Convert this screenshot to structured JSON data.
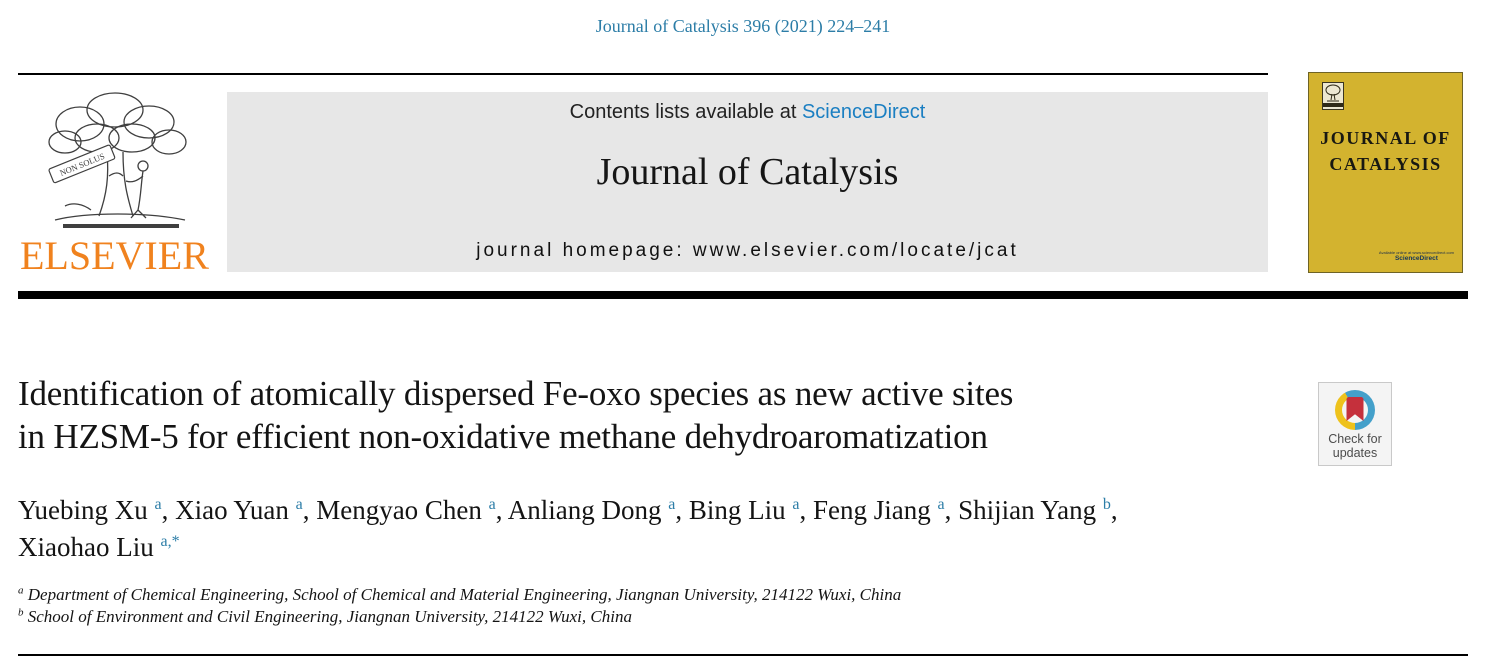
{
  "page": {
    "citation": "Journal of Catalysis 396 (2021) 224–241"
  },
  "header": {
    "contents_prefix": "Contents lists available at ",
    "sciencedirect": "ScienceDirect",
    "journal_title": "Journal of Catalysis",
    "homepage": "journal homepage: www.elsevier.com/locate/jcat"
  },
  "elsevier": {
    "wordmark": "ELSEVIER",
    "ribbon": "NON SOLUS"
  },
  "cover": {
    "title_line1": "JOURNAL OF",
    "title_line2": "CATALYSIS",
    "available_line": "Available online at www.sciencedirect.com",
    "sciencedirect": "ScienceDirect"
  },
  "article": {
    "title_line1": "Identification of atomically dispersed Fe-oxo species as new active sites",
    "title_line2": "in HZSM-5 for efficient non-oxidative methane dehydroaromatization",
    "authors": [
      {
        "name": "Yuebing Xu",
        "sup": "a"
      },
      {
        "name": "Xiao Yuan",
        "sup": "a"
      },
      {
        "name": "Mengyao Chen",
        "sup": "a"
      },
      {
        "name": "Anliang Dong",
        "sup": "a"
      },
      {
        "name": "Bing Liu",
        "sup": "a"
      },
      {
        "name": "Feng Jiang",
        "sup": "a"
      },
      {
        "name": "Shijian Yang",
        "sup": "b",
        "br_after": true
      },
      {
        "name": "Xiaohao Liu",
        "sup": "a,*"
      }
    ],
    "affiliations": [
      {
        "sup": "a",
        "text": "Department of Chemical Engineering, School of Chemical and Material Engineering, Jiangnan University, 214122 Wuxi, China"
      },
      {
        "sup": "b",
        "text": "School of Environment and Civil Engineering, Jiangnan University, 214122 Wuxi, China"
      }
    ]
  },
  "crossmark": {
    "line1": "Check for",
    "line2": "updates"
  },
  "colors": {
    "link_blue": "#2c7da7",
    "sciencedirect_blue": "#1b7fc2",
    "elsevier_orange": "#f0821e",
    "cover_yellow": "#d3b32f",
    "banner_gray": "#e7e7e7",
    "crossmark_blue": "#44a0ca",
    "crossmark_yellow": "#eec21c",
    "crossmark_red": "#c5303c"
  }
}
